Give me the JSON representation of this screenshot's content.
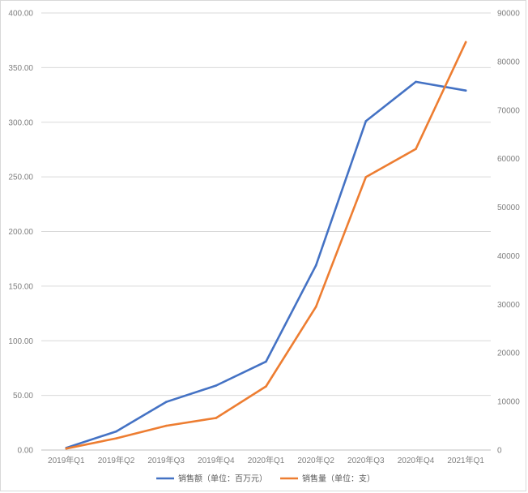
{
  "chart_data": {
    "type": "line",
    "title": "",
    "categories": [
      "2019年Q1",
      "2019年Q2",
      "2019年Q3",
      "2019年Q4",
      "2020年Q1",
      "2020年Q2",
      "2020年Q3",
      "2020年Q4",
      "2021年Q1"
    ],
    "series": [
      {
        "name": "销售额（单位：百万元）",
        "axis": "left",
        "color": "#4472c4",
        "values": [
          2,
          17,
          44,
          59,
          81,
          169,
          301,
          337,
          329
        ]
      },
      {
        "name": "销售量（单位：支）",
        "axis": "right",
        "color": "#ed7d31",
        "values": [
          300,
          2400,
          5000,
          6600,
          13100,
          29500,
          56200,
          62000,
          84000
        ]
      }
    ],
    "y_left": {
      "range": [
        0,
        400
      ],
      "ticks": [
        "0.00",
        "50.00",
        "100.00",
        "150.00",
        "200.00",
        "250.00",
        "300.00",
        "350.00",
        "400.00"
      ]
    },
    "y_right": {
      "range": [
        0,
        90000
      ],
      "ticks": [
        "0",
        "10000",
        "20000",
        "30000",
        "40000",
        "50000",
        "60000",
        "70000",
        "80000",
        "90000"
      ]
    },
    "grid": true,
    "legend": "bottom"
  }
}
